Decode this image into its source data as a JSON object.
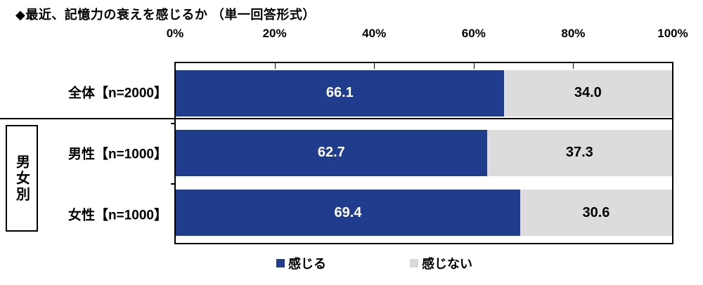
{
  "title": "◆最近、記憶力の衰えを感じるか （単一回答形式）",
  "axis": {
    "tick_labels": [
      "0%",
      "20%",
      "40%",
      "60%",
      "80%",
      "100%"
    ]
  },
  "group": {
    "label": "男女別"
  },
  "rows": [
    {
      "category": "全体【n=2000】",
      "feel": "66.1",
      "not_feel": "34.0"
    },
    {
      "category": "男性【n=1000】",
      "feel": "62.7",
      "not_feel": "37.3"
    },
    {
      "category": "女性【n=1000】",
      "feel": "69.4",
      "not_feel": "30.6"
    }
  ],
  "legend": [
    {
      "label": "感じる",
      "color": "#1F3D8C"
    },
    {
      "label": "感じない",
      "color": "#D9D9D9"
    }
  ],
  "colors": {
    "feel_bar": "#1F3D8C",
    "not_feel_bar": "#DCDCDC",
    "border": "#000000",
    "background": "#FFFFFF"
  },
  "chart_data": {
    "type": "bar",
    "orientation": "horizontal",
    "stacked": true,
    "title": "◆最近、記憶力の衰えを感じるか （単一回答形式）",
    "categories": [
      "全体【n=2000】",
      "男性【n=1000】",
      "女性【n=1000】"
    ],
    "series": [
      {
        "name": "感じる",
        "values": [
          66.1,
          62.7,
          69.4
        ],
        "color": "#1F3D8C"
      },
      {
        "name": "感じない",
        "values": [
          34.0,
          37.3,
          30.6
        ],
        "color": "#DCDCDC"
      }
    ],
    "value_labels": {
      "感じる": [
        "66.1",
        "62.7",
        "69.4"
      ],
      "感じない": [
        "34.0",
        "37.3",
        "30.6"
      ]
    },
    "xlim": [
      0,
      100
    ],
    "x_ticks": [
      0,
      20,
      40,
      60,
      80,
      100
    ],
    "x_tick_format": "percent",
    "legend_position": "bottom",
    "row_group_label": "男女別",
    "row_groups": {
      "男女別": [
        "男性【n=1000】",
        "女性【n=1000】"
      ]
    }
  }
}
